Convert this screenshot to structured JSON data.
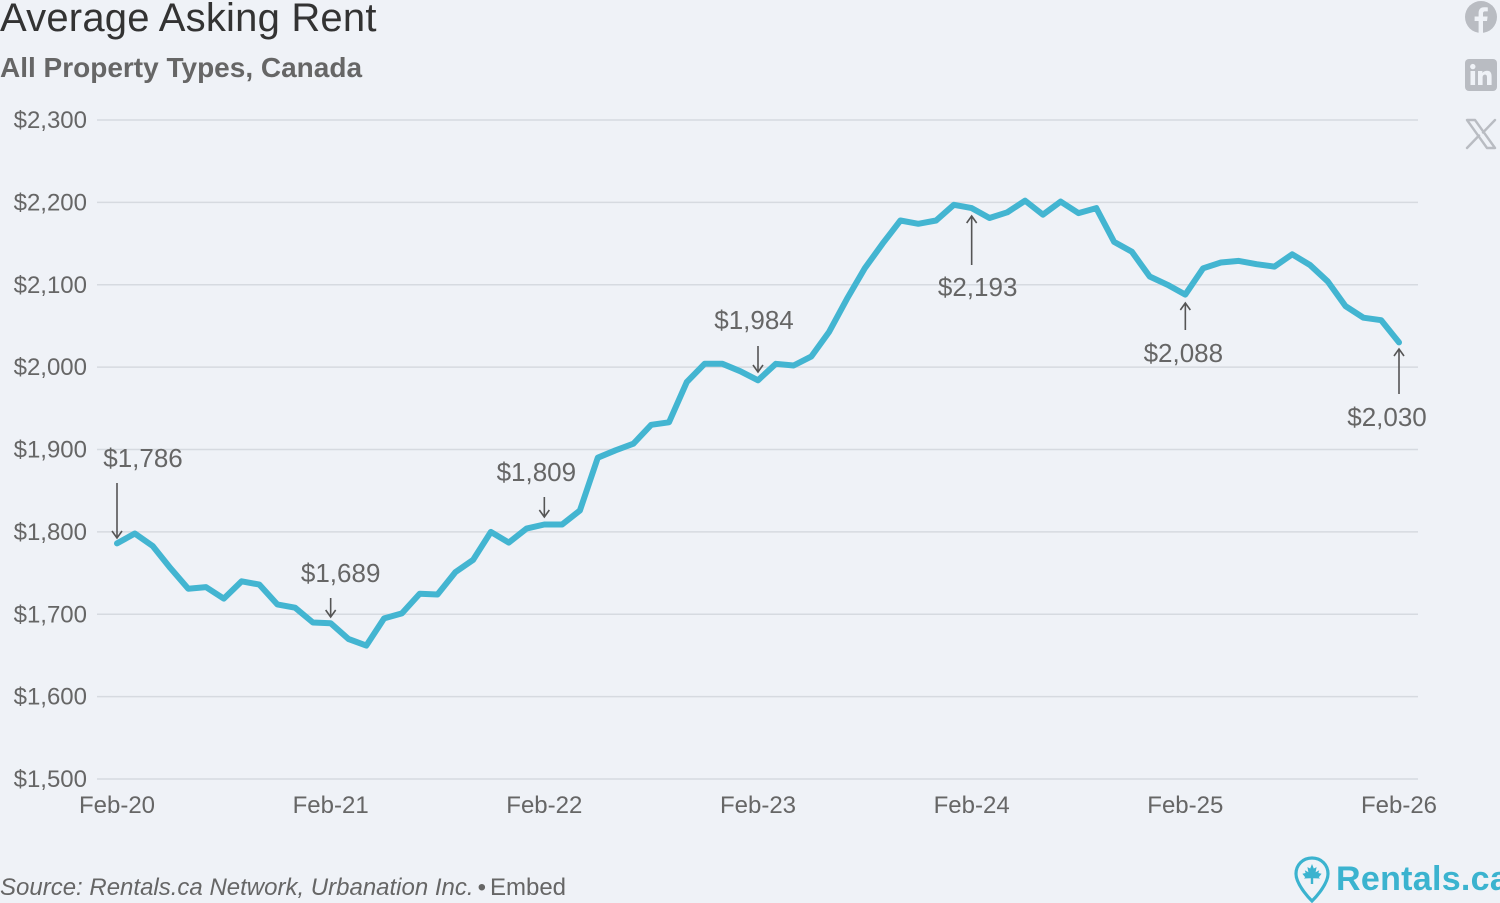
{
  "header": {
    "title": "Average Asking Rent",
    "subtitle": "All Property Types, Canada"
  },
  "social": [
    {
      "name": "facebook-icon"
    },
    {
      "name": "linkedin-icon"
    },
    {
      "name": "x-icon"
    }
  ],
  "footer": {
    "source": "Source: Rentals.ca Network, Urbanation Inc.",
    "separator": "•",
    "embed": "Embed",
    "brand": "Rentals.ca"
  },
  "colors": {
    "line": "#43b5d1",
    "grid": "#d6dae0",
    "text": "#666666",
    "brand": "#3bb3cf"
  },
  "chart_data": {
    "type": "line",
    "title": "Average Asking Rent",
    "subtitle": "All Property Types, Canada",
    "xlabel": "",
    "ylabel": "",
    "ylim": [
      1500,
      2300
    ],
    "y_ticks": [
      1500,
      1600,
      1700,
      1800,
      1900,
      2000,
      2100,
      2200,
      2300
    ],
    "y_tick_labels": [
      "$1,500",
      "$1,600",
      "$1,700",
      "$1,800",
      "$1,900",
      "$2,000",
      "$2,100",
      "$2,200",
      "$2,300"
    ],
    "x_ticks": [
      "Feb-20",
      "Feb-21",
      "Feb-22",
      "Feb-23",
      "Feb-24",
      "Feb-25",
      "Feb-26"
    ],
    "grid": true,
    "legend": "none",
    "series": [
      {
        "values": [
          1786,
          1798,
          1783,
          1756,
          1731,
          1733,
          1719,
          1740,
          1736,
          1712,
          1708,
          1690,
          1689,
          1670,
          1662,
          1695,
          1701,
          1725,
          1724,
          1751,
          1766,
          1800,
          1787,
          1804,
          1809,
          1809,
          1826,
          1890,
          1899,
          1907,
          1930,
          1933,
          1982,
          2004,
          2004,
          1995,
          1984,
          2004,
          2002,
          2013,
          2043,
          2083,
          2120,
          2150,
          2178,
          2174,
          2178,
          2197,
          2193,
          2181,
          2188,
          2202,
          2185,
          2201,
          2187,
          2193,
          2152,
          2140,
          2110,
          2100,
          2088,
          2120,
          2127,
          2129,
          2125,
          2122,
          2137,
          2124,
          2104,
          2074,
          2060,
          2057,
          2030
        ]
      }
    ],
    "annotations": [
      {
        "label": "$1,786",
        "month_index": 0,
        "value": 1786,
        "arrow": "down"
      },
      {
        "label": "$1,689",
        "month_index": 12,
        "value": 1689,
        "arrow": "down"
      },
      {
        "label": "$1,809",
        "month_index": 24,
        "value": 1809,
        "arrow": "down"
      },
      {
        "label": "$1,984",
        "month_index": 36,
        "value": 1984,
        "arrow": "down"
      },
      {
        "label": "$2,193",
        "month_index": 48,
        "value": 2193,
        "arrow": "up"
      },
      {
        "label": "$2,088",
        "month_index": 60,
        "value": 2088,
        "arrow": "up"
      },
      {
        "label": "$2,030",
        "month_index": 72,
        "value": 2030,
        "arrow": "up"
      }
    ]
  }
}
